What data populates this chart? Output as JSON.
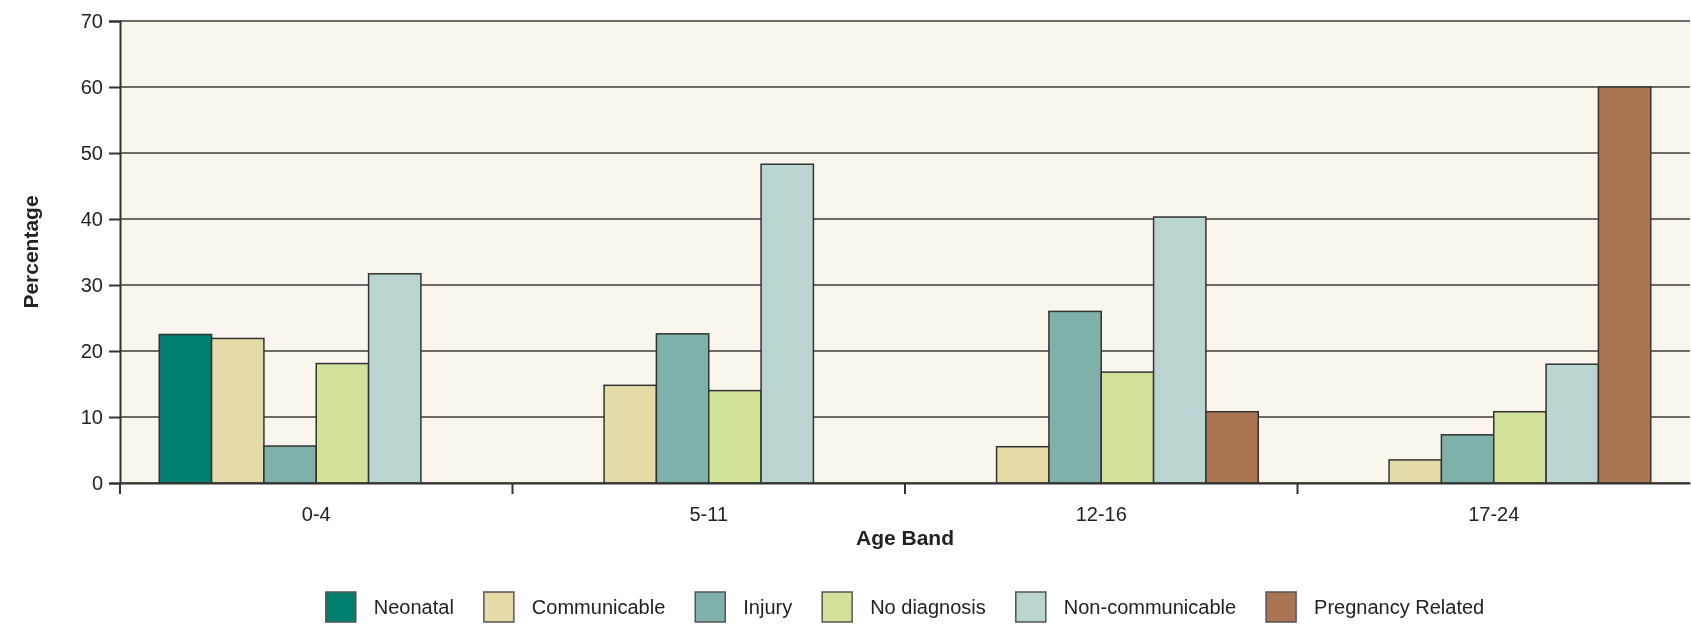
{
  "chart_data": {
    "type": "bar",
    "xlabel": "Age Band",
    "ylabel": "Percentage",
    "categories": [
      "0-4",
      "5-11",
      "12-16",
      "17-24"
    ],
    "series": [
      {
        "name": "Neonatal",
        "color": "#007f6e",
        "values": [
          22.5,
          null,
          null,
          null
        ]
      },
      {
        "name": "Communicable",
        "color": "#e5dba6",
        "values": [
          21.9,
          14.8,
          5.5,
          3.5
        ]
      },
      {
        "name": "Injury",
        "color": "#7fb1ab",
        "values": [
          5.6,
          22.6,
          26.0,
          7.3
        ]
      },
      {
        "name": "No diagnosis",
        "color": "#d3e29a",
        "values": [
          18.1,
          14.0,
          16.8,
          10.8
        ]
      },
      {
        "name": "Non-communicable",
        "color": "#b9d4d1",
        "values": [
          31.7,
          48.3,
          40.3,
          18.0
        ]
      },
      {
        "name": "Pregnancy Related",
        "color": "#ab7453",
        "values": [
          null,
          null,
          10.8,
          60.0
        ]
      }
    ],
    "ylim": [
      0,
      70
    ],
    "yticks": [
      0,
      10,
      20,
      30,
      40,
      50,
      60,
      70
    ],
    "grid": "y",
    "legend": "bottom"
  }
}
